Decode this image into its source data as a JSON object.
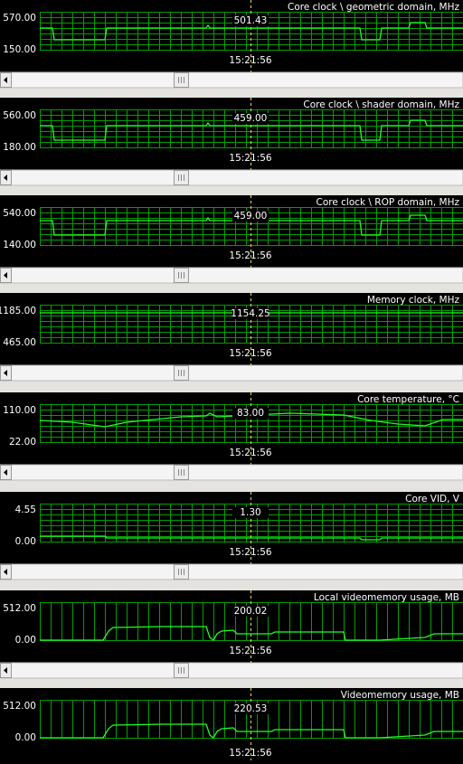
{
  "panels": [
    {
      "title": "Core clock \\ geometric domain, MHz",
      "ymax": "570.00",
      "ymin": "150.00",
      "current": "501.43",
      "time": "15:21:56"
    },
    {
      "title": "Core clock \\ shader domain, MHz",
      "ymax": "560.00",
      "ymin": "180.00",
      "current": "459.00",
      "time": "15:21:56"
    },
    {
      "title": "Core clock \\ ROP domain, MHz",
      "ymax": "540.00",
      "ymin": "140.00",
      "current": "459.00",
      "time": "15:21:56"
    },
    {
      "title": "Memory clock, MHz",
      "ymax": "1185.00",
      "ymin": "465.00",
      "current": "1154.25",
      "time": "15:21:56"
    },
    {
      "title": "Core temperature, °C",
      "ymax": "110.00",
      "ymin": "22.00",
      "current": "83.00",
      "time": "15:21:56"
    },
    {
      "title": "Core VID, V",
      "ymax": "4.55",
      "ymin": "0.00",
      "current": "1.30",
      "time": "15:21:56"
    },
    {
      "title": "Local videomemory usage, MB",
      "ymax": "512.00",
      "ymin": "0.00",
      "current": "200.02",
      "time": "15:21:56"
    },
    {
      "title": "Videomemory usage, MB",
      "ymax": "512.00",
      "ymin": "0.00",
      "current": "220.53",
      "time": "15:21:56"
    }
  ]
}
